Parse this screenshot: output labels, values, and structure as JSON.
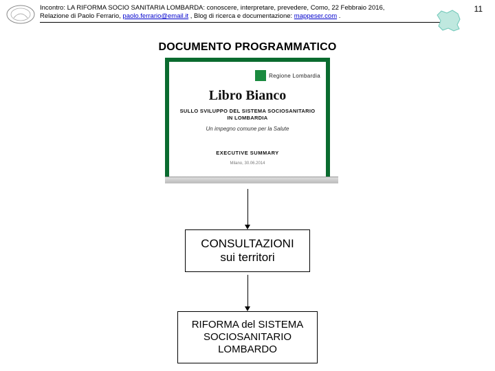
{
  "header": {
    "prefix": "Incontro: ",
    "title_caps": "LA RIFORMA SOCIO SANITARIA LOMBARDA",
    "title_rest": ": conoscere, interpretare, prevedere, Como, 22 Febbraio 2016,",
    "line2_prefix": "Relazione di Paolo Ferrario, ",
    "email": "paolo.ferrario@email.it",
    "line2_mid": " , Blog di ricerca e documentazione: ",
    "blog": "mappeser.com",
    "line2_end": " ."
  },
  "page_number": "11",
  "section_title": "DOCUMENTO PROGRAMMATICO",
  "doc_card": {
    "region_label": "Regione Lombardia",
    "book_title": "Libro Bianco",
    "subtitle_line1": "SULLO SVILUPPO DEL SISTEMA SOCIOSANITARIO",
    "subtitle_line2": "IN LOMBARDIA",
    "tagline": "Un impegno comune per la Salute",
    "exec": "EXECUTIVE SUMMARY",
    "date": "Milano, 30.06.2014",
    "border_color": "#0a6b2f"
  },
  "box1": {
    "line1": "CONSULTAZIONI",
    "line2": "sui territori"
  },
  "box2": {
    "line1": "RIFORMA del SISTEMA",
    "line2": "SOCIOSANITARIO",
    "line3": "LOMBARDO"
  },
  "arrows": {
    "len1": 52,
    "len2": 46
  },
  "colors": {
    "link": "#0000cc",
    "region_icon": "#6fc7b8"
  }
}
